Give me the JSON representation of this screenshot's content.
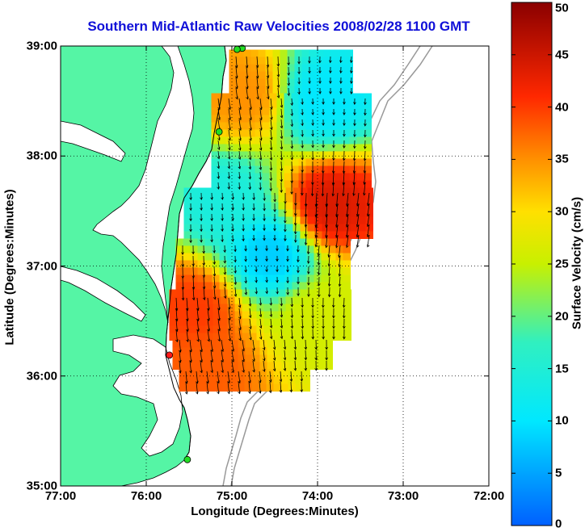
{
  "title": "Southern Mid-Atlantic Raw Velocities 2008/02/28 1100 GMT",
  "x_axis": {
    "label": "Longitude (Degrees:Minutes)",
    "range": [
      -77,
      -72
    ],
    "ticks": [
      {
        "value": -77,
        "label": "77:00"
      },
      {
        "value": -76,
        "label": "76:00"
      },
      {
        "value": -75,
        "label": "75:00"
      },
      {
        "value": -74,
        "label": "74:00"
      },
      {
        "value": -73,
        "label": "73:00"
      },
      {
        "value": -72,
        "label": "72:00"
      }
    ]
  },
  "y_axis": {
    "label": "Latitude (Degrees:Minutes)",
    "range": [
      35,
      39
    ],
    "ticks": [
      {
        "value": 35,
        "label": "35:00"
      },
      {
        "value": 36,
        "label": "36:00"
      },
      {
        "value": 37,
        "label": "37:00"
      },
      {
        "value": 38,
        "label": "38:00"
      },
      {
        "value": 39,
        "label": "39:00"
      }
    ]
  },
  "colorbar": {
    "label": "Surface Velocity (cm/s)",
    "range": [
      0,
      50
    ],
    "ticks": [
      0,
      5,
      10,
      15,
      20,
      25,
      30,
      35,
      40,
      45,
      50
    ]
  },
  "colors": {
    "land": "#55f5a5",
    "title": "#1010d8",
    "station_green": "#22dd22",
    "station_red": "#ff1a1a",
    "bathymetry": "#999999"
  },
  "stations": [
    {
      "lon": -74.88,
      "lat": 38.98,
      "color": "station_green"
    },
    {
      "lon": -74.94,
      "lat": 38.97,
      "color": "station_green"
    },
    {
      "lon": -75.15,
      "lat": 38.22,
      "color": "station_green"
    },
    {
      "lon": -75.73,
      "lat": 36.19,
      "color": "station_red"
    },
    {
      "lon": -75.52,
      "lat": 35.24,
      "color": "station_green"
    }
  ],
  "velocity_hotspots": [
    {
      "lon": -74.85,
      "lat": 38.55,
      "speed": 35
    },
    {
      "lon": -73.85,
      "lat": 37.55,
      "speed": 44
    },
    {
      "lon": -74.55,
      "lat": 37.1,
      "speed": 8
    },
    {
      "lon": -73.95,
      "lat": 38.5,
      "speed": 10
    },
    {
      "lon": -75.35,
      "lat": 36.1,
      "speed": 38
    },
    {
      "lon": -75.45,
      "lat": 36.6,
      "speed": 40
    },
    {
      "lon": -74.0,
      "lat": 36.55,
      "speed": 26
    },
    {
      "lon": -75.1,
      "lat": 37.6,
      "speed": 14
    }
  ]
}
